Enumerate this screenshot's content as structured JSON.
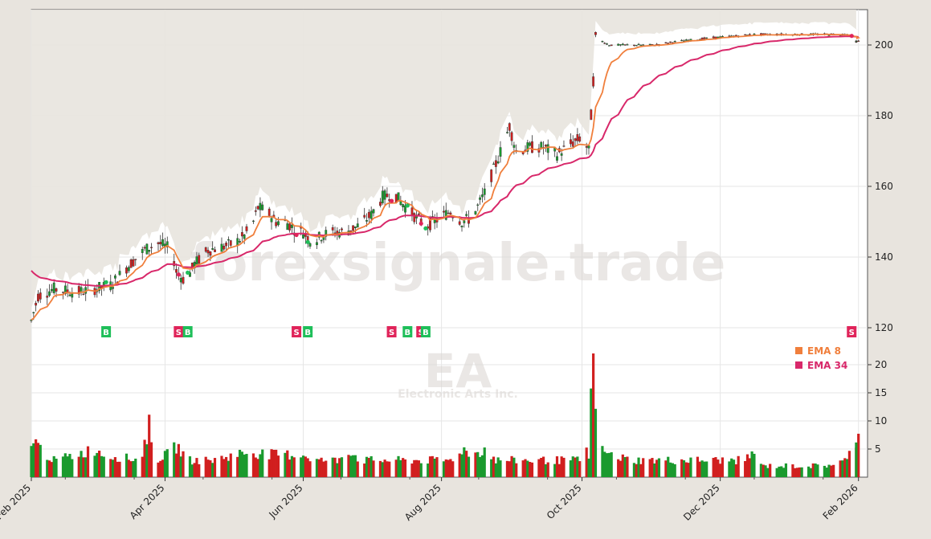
{
  "watermark": {
    "text": "forexsignale.trade",
    "ticker": "EA",
    "company": "Electronic Arts Inc."
  },
  "colors": {
    "background": "#e8e4de",
    "plot_bg": "#ffffff",
    "up": "#1a9a2e",
    "down": "#d11f1f",
    "ema8": "#f07f3c",
    "ema34": "#d8286a",
    "buy": "#1fbf5a",
    "sell": "#e0245a",
    "grid": "#e6e6e6"
  },
  "chart_data": {
    "type": "candlestick",
    "x_axis": {
      "ticks": [
        {
          "label": "Feb 2025",
          "day": 0
        },
        {
          "label": "Apr 2025",
          "day": 59
        },
        {
          "label": "Jun 2025",
          "day": 120
        },
        {
          "label": "Aug 2025",
          "day": 181
        },
        {
          "label": "Oct 2025",
          "day": 243
        },
        {
          "label": "Dec 2025",
          "day": 304
        },
        {
          "label": "Feb 2026",
          "day": 365
        }
      ],
      "range": [
        0,
        369
      ]
    },
    "price_axis": {
      "ticks": [
        120,
        140,
        160,
        180,
        200
      ],
      "range": [
        115,
        210
      ]
    },
    "volume_axis": {
      "ticks": [
        5,
        10,
        15,
        20
      ],
      "range": [
        0,
        22
      ]
    },
    "legend": [
      {
        "label": "EMA 8",
        "color": "#f07f3c"
      },
      {
        "label": "EMA 34",
        "color": "#d8286a"
      }
    ],
    "price_anchors": [
      [
        0,
        122
      ],
      [
        3,
        129
      ],
      [
        10,
        131
      ],
      [
        20,
        130
      ],
      [
        28,
        131
      ],
      [
        35,
        132
      ],
      [
        42,
        137
      ],
      [
        50,
        142
      ],
      [
        56,
        144
      ],
      [
        62,
        142
      ],
      [
        64,
        136
      ],
      [
        68,
        133
      ],
      [
        72,
        138
      ],
      [
        78,
        142
      ],
      [
        85,
        143
      ],
      [
        90,
        144
      ],
      [
        94,
        146
      ],
      [
        98,
        150
      ],
      [
        100,
        154
      ],
      [
        104,
        153
      ],
      [
        108,
        150
      ],
      [
        112,
        150
      ],
      [
        116,
        148
      ],
      [
        120,
        147
      ],
      [
        124,
        144
      ],
      [
        128,
        146
      ],
      [
        132,
        147
      ],
      [
        138,
        147
      ],
      [
        145,
        149
      ],
      [
        150,
        152
      ],
      [
        155,
        157
      ],
      [
        160,
        158
      ],
      [
        164,
        155
      ],
      [
        170,
        151
      ],
      [
        175,
        149
      ],
      [
        180,
        151
      ],
      [
        185,
        153
      ],
      [
        190,
        150
      ],
      [
        194,
        151
      ],
      [
        196,
        153
      ],
      [
        200,
        158
      ],
      [
        206,
        168
      ],
      [
        211,
        177
      ],
      [
        214,
        170
      ],
      [
        220,
        171
      ],
      [
        226,
        171
      ],
      [
        232,
        169
      ],
      [
        238,
        172
      ],
      [
        243,
        174
      ],
      [
        246,
        170
      ],
      [
        248,
        190
      ],
      [
        249,
        202
      ],
      [
        255,
        200
      ],
      [
        265,
        200
      ],
      [
        275,
        200
      ],
      [
        285,
        201
      ],
      [
        300,
        202
      ],
      [
        320,
        203
      ],
      [
        340,
        203
      ],
      [
        360,
        203
      ],
      [
        364,
        201
      ]
    ],
    "volume_anchors": [
      [
        0,
        7
      ],
      [
        4,
        5
      ],
      [
        10,
        3
      ],
      [
        20,
        4
      ],
      [
        28,
        5
      ],
      [
        32,
        4
      ],
      [
        40,
        3.5
      ],
      [
        48,
        3
      ],
      [
        52,
        9
      ],
      [
        54,
        3
      ],
      [
        60,
        4
      ],
      [
        64,
        5.5
      ],
      [
        70,
        3
      ],
      [
        80,
        3
      ],
      [
        90,
        4
      ],
      [
        96,
        4.5
      ],
      [
        105,
        4
      ],
      [
        115,
        4
      ],
      [
        120,
        4
      ],
      [
        126,
        3
      ],
      [
        135,
        3
      ],
      [
        140,
        5
      ],
      [
        145,
        3
      ],
      [
        155,
        3
      ],
      [
        165,
        3
      ],
      [
        175,
        3
      ],
      [
        185,
        3
      ],
      [
        190,
        5
      ],
      [
        195,
        4
      ],
      [
        200,
        5
      ],
      [
        205,
        3
      ],
      [
        215,
        3
      ],
      [
        225,
        3
      ],
      [
        235,
        3
      ],
      [
        242,
        3
      ],
      [
        244,
        8
      ],
      [
        246,
        3
      ],
      [
        247,
        15
      ],
      [
        248,
        25
      ],
      [
        250,
        5
      ],
      [
        255,
        4
      ],
      [
        265,
        3
      ],
      [
        275,
        3
      ],
      [
        285,
        3
      ],
      [
        295,
        3
      ],
      [
        305,
        3
      ],
      [
        315,
        3
      ],
      [
        320,
        5
      ],
      [
        322,
        2
      ],
      [
        330,
        2
      ],
      [
        340,
        2
      ],
      [
        350,
        2
      ],
      [
        360,
        3
      ],
      [
        364,
        7
      ]
    ],
    "signals": [
      {
        "type": "B",
        "day": 33
      },
      {
        "type": "S",
        "day": 65
      },
      {
        "type": "B",
        "day": 69
      },
      {
        "type": "S",
        "day": 117
      },
      {
        "type": "B",
        "day": 122
      },
      {
        "type": "S",
        "day": 159
      },
      {
        "type": "B",
        "day": 166
      },
      {
        "type": "S",
        "day": 172
      },
      {
        "type": "B",
        "day": 174
      },
      {
        "type": "S",
        "day": 362
      }
    ]
  }
}
